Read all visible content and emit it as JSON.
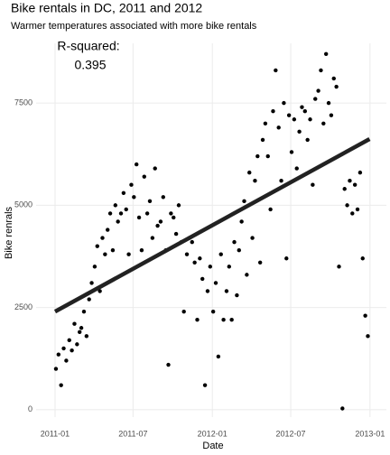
{
  "chart_data": {
    "type": "scatter",
    "title": "Bike rentals in DC, 2011 and 2012",
    "subtitle": "Warmer temperatures associated with more bike rentals",
    "x_label": "Date",
    "y_label": "Bike renrals",
    "annotation": {
      "label": "R-squared:",
      "value": 0.395
    },
    "color": "#000000",
    "grid": true,
    "xlim": [
      "2010-11-18",
      "2013-02-08"
    ],
    "xticks": [
      {
        "value": "2011-01-01",
        "label": "2011-01"
      },
      {
        "value": "2011-07-01",
        "label": "2011-07"
      },
      {
        "value": "2012-01-01",
        "label": "2012-01"
      },
      {
        "value": "2012-07-01",
        "label": "2012-07"
      },
      {
        "value": "2013-01-01",
        "label": "2013-01"
      }
    ],
    "ylim": [
      -180,
      8960
    ],
    "yticks": [
      0,
      2500,
      5000,
      7500
    ],
    "trend": {
      "color": "#222222",
      "x": [
        "2011-01-01",
        "2012-12-31"
      ],
      "y": [
        2400,
        6620
      ]
    },
    "x": [
      "2011-01-03",
      "2011-01-09",
      "2011-01-15",
      "2011-01-21",
      "2011-01-27",
      "2011-02-03",
      "2011-02-09",
      "2011-02-15",
      "2011-02-21",
      "2011-02-27",
      "2011-03-03",
      "2011-03-09",
      "2011-03-15",
      "2011-03-21",
      "2011-03-27",
      "2011-04-03",
      "2011-04-09",
      "2011-04-15",
      "2011-04-21",
      "2011-04-27",
      "2011-05-03",
      "2011-05-09",
      "2011-05-15",
      "2011-05-21",
      "2011-05-27",
      "2011-06-03",
      "2011-06-09",
      "2011-06-15",
      "2011-06-21",
      "2011-06-27",
      "2011-07-03",
      "2011-07-09",
      "2011-07-15",
      "2011-07-21",
      "2011-07-27",
      "2011-08-03",
      "2011-08-09",
      "2011-08-15",
      "2011-08-21",
      "2011-08-27",
      "2011-09-03",
      "2011-09-09",
      "2011-09-15",
      "2011-09-21",
      "2011-09-27",
      "2011-10-03",
      "2011-10-09",
      "2011-10-15",
      "2011-10-21",
      "2011-10-27",
      "2011-11-03",
      "2011-11-09",
      "2011-11-15",
      "2011-11-21",
      "2011-11-27",
      "2011-12-03",
      "2011-12-09",
      "2011-12-15",
      "2011-12-21",
      "2011-12-27",
      "2012-01-03",
      "2012-01-09",
      "2012-01-15",
      "2012-01-21",
      "2012-01-27",
      "2012-02-03",
      "2012-02-09",
      "2012-02-15",
      "2012-02-21",
      "2012-02-27",
      "2012-03-03",
      "2012-03-09",
      "2012-03-15",
      "2012-03-21",
      "2012-03-27",
      "2012-04-03",
      "2012-04-09",
      "2012-04-15",
      "2012-04-21",
      "2012-04-27",
      "2012-05-03",
      "2012-05-09",
      "2012-05-15",
      "2012-05-21",
      "2012-05-27",
      "2012-06-03",
      "2012-06-09",
      "2012-06-15",
      "2012-06-21",
      "2012-06-27",
      "2012-07-03",
      "2012-07-09",
      "2012-07-15",
      "2012-07-21",
      "2012-07-27",
      "2012-08-03",
      "2012-08-09",
      "2012-08-15",
      "2012-08-21",
      "2012-08-27",
      "2012-09-03",
      "2012-09-09",
      "2012-09-15",
      "2012-09-21",
      "2012-09-27",
      "2012-10-03",
      "2012-10-09",
      "2012-10-15",
      "2012-10-21",
      "2012-10-29",
      "2012-11-03",
      "2012-11-09",
      "2012-11-15",
      "2012-11-21",
      "2012-11-27",
      "2012-12-03",
      "2012-12-09",
      "2012-12-15",
      "2012-12-21",
      "2012-12-27"
    ],
    "y": [
      1000,
      1350,
      600,
      1500,
      1200,
      1700,
      1450,
      2100,
      1600,
      1900,
      2000,
      2400,
      1800,
      2700,
      3100,
      3500,
      4000,
      2900,
      4200,
      3800,
      4400,
      4800,
      3900,
      5000,
      4600,
      4800,
      5300,
      4900,
      3800,
      5500,
      5200,
      6000,
      4700,
      3900,
      5700,
      4800,
      5100,
      4200,
      5900,
      4500,
      4600,
      5200,
      3900,
      1100,
      4800,
      4700,
      4300,
      5000,
      4100,
      2400,
      3800,
      4200,
      4100,
      3600,
      2200,
      3700,
      3200,
      600,
      2900,
      3500,
      2400,
      3100,
      1300,
      3800,
      2200,
      2900,
      3500,
      2200,
      4100,
      2800,
      3900,
      4600,
      5100,
      3300,
      5800,
      4200,
      5600,
      6200,
      3600,
      6600,
      7000,
      6200,
      4900,
      7300,
      8300,
      6900,
      5600,
      7500,
      3700,
      7200,
      6300,
      7100,
      5900,
      6800,
      7400,
      7300,
      6600,
      7100,
      5500,
      7600,
      7800,
      8300,
      7000,
      8700,
      7500,
      7200,
      8100,
      7900,
      3500,
      30,
      5400,
      5000,
      5600,
      4800,
      5500,
      4900,
      5800,
      3700,
      2300,
      1800
    ]
  }
}
